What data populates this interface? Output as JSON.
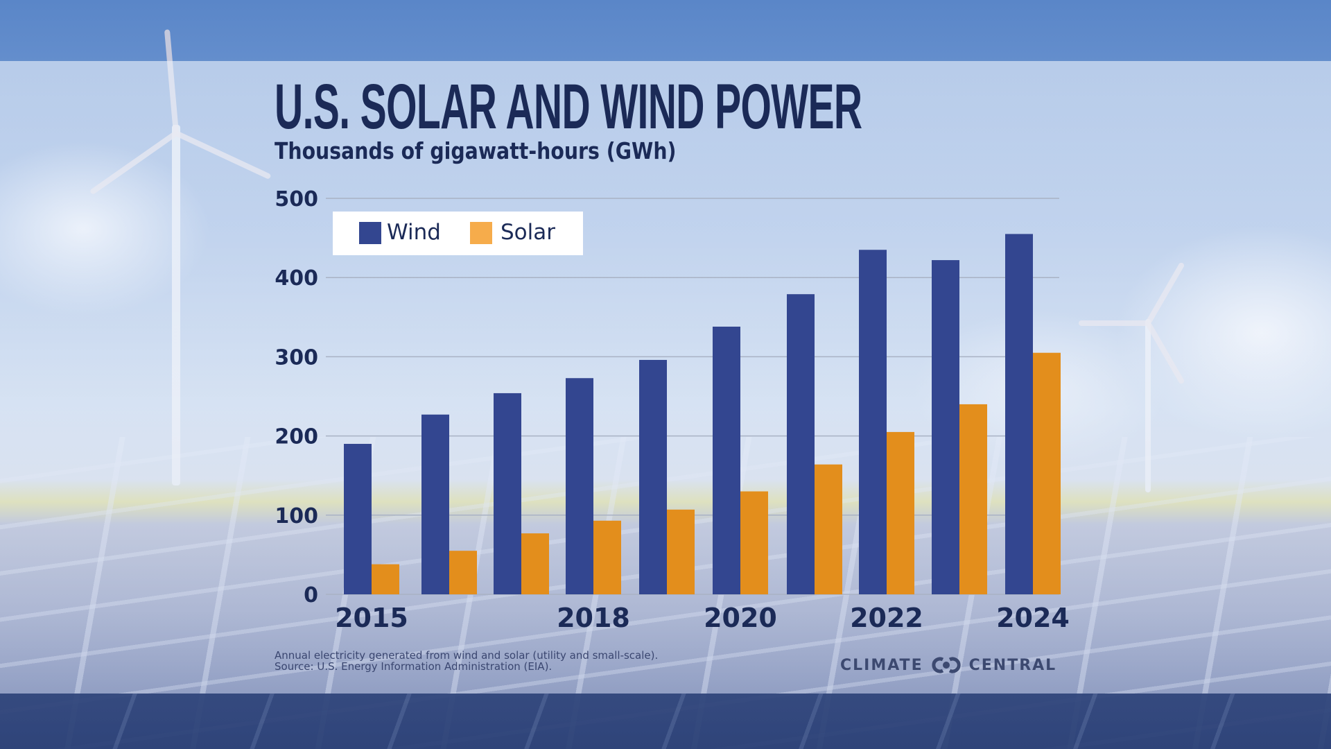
{
  "header": {
    "title": "U.S. SOLAR AND WIND POWER",
    "subtitle": "Thousands of gigawatt-hours (GWh)"
  },
  "legend": {
    "items": [
      {
        "label": "Wind",
        "color": "#334690"
      },
      {
        "label": "Solar",
        "color": "#f6ac4b"
      }
    ]
  },
  "footer": {
    "note_line1": "Annual electricity generated from wind and solar (utility and small-scale).",
    "note_line2": "Source: U.S. Energy Information Administration (EIA).",
    "logo_left": "CLIMATE",
    "logo_right": "CENTRAL",
    "logo_icon": "climate-central-logo-icon"
  },
  "colors": {
    "wind": "#334690",
    "solar": "#e38e1c",
    "text": "#1b2a57",
    "gridline": "#a9b2c4"
  },
  "chart_data": {
    "type": "bar",
    "title": "U.S. SOLAR AND WIND POWER",
    "subtitle": "Thousands of gigawatt-hours (GWh)",
    "xlabel": "",
    "ylabel": "Thousands of gigawatt-hours (GWh)",
    "categories": [
      "2015",
      "2016",
      "2017",
      "2018",
      "2019",
      "2020",
      "2021",
      "2022",
      "2023",
      "2024"
    ],
    "x_tick_labels": [
      "2015",
      "",
      "",
      "2018",
      "",
      "2020",
      "",
      "2022",
      "",
      "2024"
    ],
    "series": [
      {
        "name": "Wind",
        "values": [
          190,
          227,
          254,
          273,
          296,
          338,
          379,
          435,
          422,
          455
        ]
      },
      {
        "name": "Solar",
        "values": [
          38,
          55,
          77,
          93,
          107,
          130,
          164,
          205,
          240,
          305
        ]
      }
    ],
    "ylim": [
      0,
      500
    ],
    "y_ticks": [
      0,
      100,
      200,
      300,
      400,
      500
    ],
    "grid": true,
    "legend_position": "top-left"
  }
}
